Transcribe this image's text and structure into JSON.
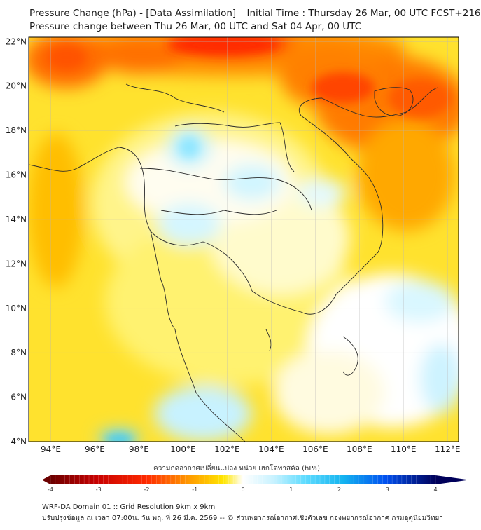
{
  "header": {
    "title": "Pressure Change (hPa) - [Data Assimilation] _ Initial Time : Thursday 26 Mar, 00 UTC FCST+216",
    "subtitle": "Pressure change between Thu 26 Mar, 00 UTC and Sat 04 Apr, 00 UTC"
  },
  "map": {
    "lat_labels": [
      "22°N",
      "20°N",
      "18°N",
      "16°N",
      "14°N",
      "12°N",
      "10°N",
      "8°N",
      "6°N",
      "4°N"
    ],
    "lon_labels": [
      "94°E",
      "96°E",
      "98°E",
      "100°E",
      "102°E",
      "104°E",
      "106°E",
      "108°E",
      "110°E",
      "112°E"
    ],
    "lat_values": [
      22,
      20,
      18,
      16,
      14,
      12,
      10,
      8,
      6,
      4
    ],
    "lon_values": [
      94,
      96,
      98,
      100,
      102,
      104,
      106,
      108,
      110,
      112
    ],
    "extent": {
      "lon_min": 93,
      "lon_max": 112.5,
      "lat_min": 4,
      "lat_max": 22.2
    }
  },
  "colorbar": {
    "label": "ความกดอากาศเปลี่ยนแปลง หน่วย เฮกโตพาสคัล (hPa)",
    "ticks": [
      "-4",
      "-3",
      "-2",
      "-1",
      "0",
      "1",
      "2",
      "3",
      "4"
    ],
    "tick_values": [
      -4,
      -3,
      -2,
      -1,
      0,
      1,
      2,
      3,
      4
    ],
    "range": [
      -4,
      4
    ],
    "colors": [
      "#6b0000",
      "#b00000",
      "#ff0000",
      "#ff7a00",
      "#ffc800",
      "#fff000",
      "#ffffcc",
      "#ffffff",
      "#d6f6ff",
      "#7ee6ff",
      "#1ec8f0",
      "#0064ff",
      "#0000b4",
      "#00005a"
    ]
  },
  "footer": {
    "line1": "WRF-DA Domain 01 :: Grid Resolution 9km x 9km",
    "line2": "ปรับปรุงข้อมูล ณ เวลา 07:00น. วัน พฤ. ที่ 26 มี.ค. 2569 -- © ส่วนพยากรณ์อากาศเชิงตัวเลข กองพยากรณ์อากาศ กรมอุตุนิยมวิทยา"
  }
}
